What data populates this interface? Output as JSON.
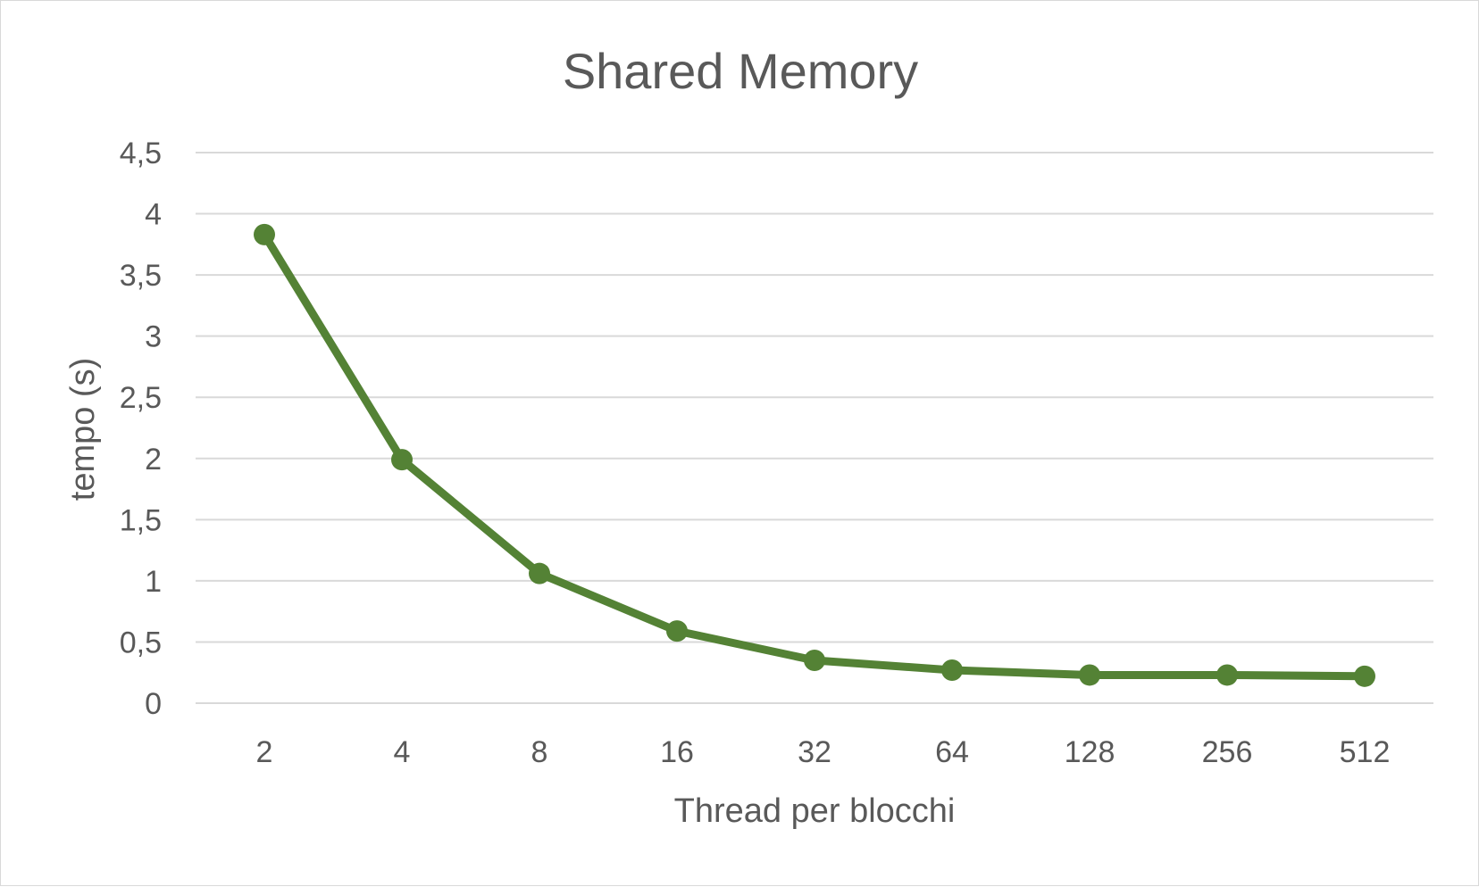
{
  "chart_data": {
    "type": "line",
    "title": "Shared Memory",
    "xlabel": "Thread per blocchi",
    "ylabel": "tempo (s)",
    "categories": [
      "2",
      "4",
      "8",
      "16",
      "32",
      "64",
      "128",
      "256",
      "512"
    ],
    "series": [
      {
        "values": [
          3.83,
          1.99,
          1.06,
          0.59,
          0.35,
          0.27,
          0.23,
          0.23,
          0.22
        ],
        "color": "#548235"
      }
    ],
    "ylim": [
      0,
      4.5
    ],
    "yticks": [
      "0",
      "0,5",
      "1",
      "1,5",
      "2",
      "2,5",
      "3",
      "3,5",
      "4",
      "4,5"
    ],
    "grid": true,
    "legend": "none"
  }
}
